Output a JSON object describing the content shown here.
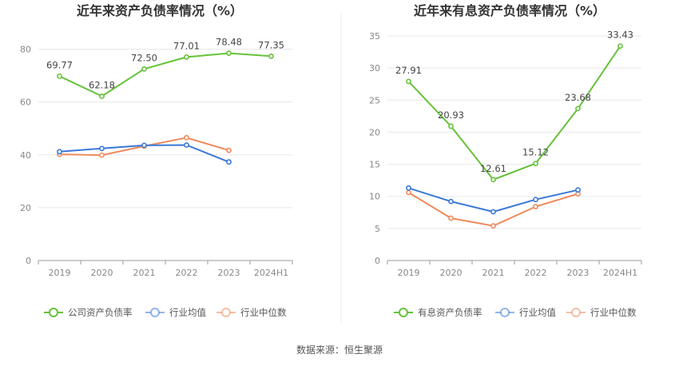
{
  "source_label": "数据来源：恒生聚源",
  "colors": {
    "green": "#66c23a",
    "blue": "#3b78d8",
    "orange": "#ef8a5d",
    "grid": "#e8e8e8",
    "axis": "#999999"
  },
  "chart_data": [
    {
      "type": "line",
      "title": "近年来资产负债率情况（%）",
      "categories": [
        "2019",
        "2020",
        "2021",
        "2022",
        "2023",
        "2024H1"
      ],
      "ylim": [
        0,
        85
      ],
      "yticks": [
        0,
        20,
        40,
        60,
        80
      ],
      "series": [
        {
          "name": "公司资产负债率",
          "color": "#66c23a",
          "labels": true,
          "values": [
            69.77,
            62.18,
            72.5,
            77.01,
            78.48,
            77.35
          ],
          "value_labels": [
            "69.77",
            "62.18",
            "72.50",
            "77.01",
            "78.48",
            "77.35"
          ]
        },
        {
          "name": "行业均值",
          "color": "#3b78d8",
          "labels": false,
          "values": [
            41.2,
            42.4,
            43.6,
            43.7,
            37.3,
            null
          ]
        },
        {
          "name": "行业中位数",
          "color": "#ef8a5d",
          "labels": false,
          "values": [
            40.2,
            39.9,
            43.3,
            46.5,
            41.7,
            null
          ]
        }
      ]
    },
    {
      "type": "line",
      "title": "近年来有息资产负债率情况（%）",
      "categories": [
        "2019",
        "2020",
        "2021",
        "2022",
        "2023",
        "2024H1"
      ],
      "ylim": [
        0,
        35
      ],
      "yticks": [
        0,
        5,
        10,
        15,
        20,
        25,
        30,
        35
      ],
      "series": [
        {
          "name": "有息资产负债率",
          "color": "#66c23a",
          "labels": true,
          "values": [
            27.91,
            20.93,
            12.61,
            15.12,
            23.68,
            33.43
          ],
          "value_labels": [
            "27.91",
            "20.93",
            "12.61",
            "15.12",
            "23.68",
            "33.43"
          ]
        },
        {
          "name": "行业均值",
          "color": "#3b78d8",
          "labels": false,
          "values": [
            11.3,
            9.2,
            7.6,
            9.5,
            11.0,
            null
          ]
        },
        {
          "name": "行业中位数",
          "color": "#ef8a5d",
          "labels": false,
          "values": [
            10.6,
            6.6,
            5.4,
            8.4,
            10.4,
            null
          ]
        }
      ]
    }
  ]
}
